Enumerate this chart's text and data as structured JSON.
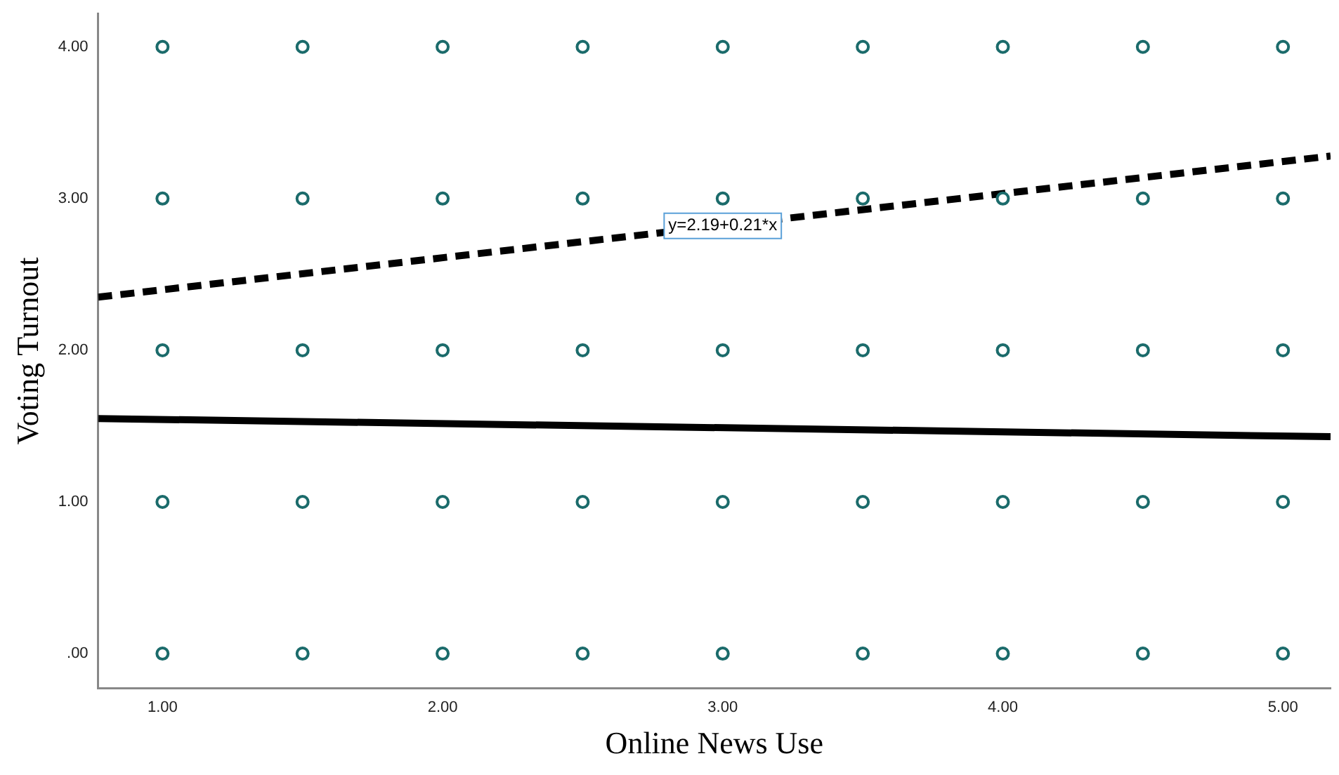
{
  "chart_data": {
    "type": "scatter",
    "xlabel": "Online News Use",
    "ylabel": "Voting Turnout",
    "xlim": [
      0.77,
      5.17
    ],
    "ylim": [
      -0.23,
      4.22
    ],
    "xticks": [
      {
        "value": 1,
        "label": "1.00"
      },
      {
        "value": 2,
        "label": "2.00"
      },
      {
        "value": 3,
        "label": "3.00"
      },
      {
        "value": 4,
        "label": "4.00"
      },
      {
        "value": 5,
        "label": "5.00"
      }
    ],
    "yticks": [
      {
        "value": 0,
        "label": ".00"
      },
      {
        "value": 1,
        "label": "1.00"
      },
      {
        "value": 2,
        "label": "2.00"
      },
      {
        "value": 3,
        "label": "3.00"
      },
      {
        "value": 4,
        "label": "4.00"
      }
    ],
    "grid": false,
    "legend": false,
    "marker": "circle",
    "series": [
      {
        "color": "#1b6b6b",
        "x": [
          1,
          1,
          1,
          1,
          1,
          1.5,
          1.5,
          1.5,
          1.5,
          1.5,
          2,
          2,
          2,
          2,
          2,
          2.5,
          2.5,
          2.5,
          2.5,
          2.5,
          3,
          3,
          3,
          3,
          3,
          3.5,
          3.5,
          3.5,
          3.5,
          3.5,
          4,
          4,
          4,
          4,
          4,
          4.5,
          4.5,
          4.5,
          4.5,
          4.5,
          5,
          5,
          5,
          5,
          5
        ],
        "values": [
          0,
          1,
          2,
          3,
          4,
          0,
          1,
          2,
          3,
          4,
          0,
          1,
          2,
          3,
          4,
          0,
          1,
          2,
          3,
          4,
          0,
          1,
          2,
          3,
          4,
          0,
          1,
          2,
          3,
          4,
          0,
          1,
          2,
          3,
          4,
          0,
          1,
          2,
          3,
          4,
          0,
          1,
          2,
          3,
          4
        ]
      },
      {
        "type": "line",
        "color": "#000000",
        "line_style": "dashed",
        "marker": "none",
        "x": [
          0.77,
          5.17
        ],
        "values": [
          2.35,
          3.28
        ]
      },
      {
        "type": "line",
        "color": "#000000",
        "line_style": "solid",
        "marker": "none",
        "x": [
          0.77,
          5.17
        ],
        "values": [
          1.55,
          1.43
        ]
      }
    ],
    "annotations": [
      {
        "text": "y=2.19+0.21*x",
        "x": 3,
        "y": 2.82
      }
    ]
  }
}
